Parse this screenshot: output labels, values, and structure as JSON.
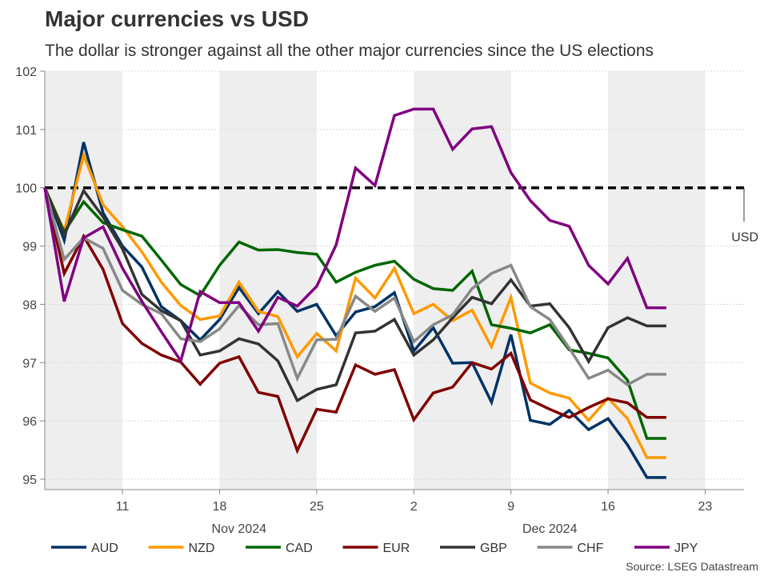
{
  "title": "Major currencies vs USD",
  "subtitle": "The dollar is stronger against all the other major currencies since the US elections",
  "source": "Source: LSEG Datastream",
  "chart_data": {
    "type": "line",
    "title": "Major currencies vs USD",
    "xlabel": "",
    "ylabel": "",
    "ylim": [
      95,
      102
    ],
    "xlim": [
      "2024-11-05",
      "2024-12-25"
    ],
    "x_axis_note": "business days",
    "grid": true,
    "legend_position": "bottom",
    "y_ticks": [
      95,
      96,
      97,
      98,
      99,
      100,
      101,
      102
    ],
    "x_ticks": [
      {
        "date": "2024-11-11",
        "label": "11"
      },
      {
        "date": "2024-11-18",
        "label": "18"
      },
      {
        "date": "2024-11-25",
        "label": "25"
      },
      {
        "date": "2024-12-02",
        "label": "2"
      },
      {
        "date": "2024-12-09",
        "label": "9"
      },
      {
        "date": "2024-12-16",
        "label": "16"
      },
      {
        "date": "2024-12-23",
        "label": "23"
      }
    ],
    "month_labels": [
      {
        "date": "2024-11-19",
        "label": "Nov 2024"
      },
      {
        "date": "2024-12-11",
        "label": "Dec 2024"
      }
    ],
    "shaded_weeks": [
      [
        "2024-11-05",
        "2024-11-11"
      ],
      [
        "2024-11-18",
        "2024-11-25"
      ],
      [
        "2024-12-02",
        "2024-12-09"
      ],
      [
        "2024-12-16",
        "2024-12-23"
      ]
    ],
    "shade_color": "#eeeeee",
    "reference_line": {
      "value": 100,
      "label": "USD",
      "color": "#000000",
      "style": "dashed"
    },
    "x": [
      "2024-11-05",
      "2024-11-06",
      "2024-11-07",
      "2024-11-08",
      "2024-11-11",
      "2024-11-12",
      "2024-11-13",
      "2024-11-14",
      "2024-11-15",
      "2024-11-18",
      "2024-11-19",
      "2024-11-20",
      "2024-11-21",
      "2024-11-22",
      "2024-11-25",
      "2024-11-26",
      "2024-11-27",
      "2024-11-28",
      "2024-11-29",
      "2024-12-02",
      "2024-12-03",
      "2024-12-04",
      "2024-12-05",
      "2024-12-06",
      "2024-12-09",
      "2024-12-10",
      "2024-12-11",
      "2024-12-12",
      "2024-12-13",
      "2024-12-16",
      "2024-12-17",
      "2024-12-18",
      "2024-12-19"
    ],
    "series": [
      {
        "name": "AUD",
        "color": "#003366",
        "values": [
          100,
          99.1,
          100.78,
          99.57,
          99.0,
          98.64,
          97.96,
          97.72,
          97.39,
          97.74,
          98.29,
          97.84,
          98.22,
          97.88,
          98.0,
          97.46,
          97.87,
          97.96,
          98.2,
          97.2,
          97.6,
          96.99,
          97.0,
          96.32,
          97.48,
          96.01,
          95.94,
          96.18,
          95.85,
          96.04,
          95.59,
          95.03,
          95.03
        ]
      },
      {
        "name": "NZD",
        "color": "#ff9900",
        "values": [
          100,
          99.26,
          100.56,
          99.71,
          99.33,
          98.9,
          98.38,
          97.98,
          97.74,
          97.8,
          98.38,
          97.88,
          97.79,
          97.1,
          97.5,
          97.2,
          98.45,
          98.11,
          98.62,
          97.84,
          98.0,
          97.72,
          97.9,
          97.27,
          98.12,
          96.65,
          96.48,
          96.39,
          96.01,
          96.39,
          96.04,
          95.37,
          95.37
        ]
      },
      {
        "name": "CAD",
        "color": "#006600",
        "values": [
          100,
          99.24,
          99.76,
          99.4,
          99.28,
          99.17,
          98.76,
          98.34,
          98.15,
          98.67,
          99.07,
          98.93,
          98.94,
          98.89,
          98.86,
          98.38,
          98.55,
          98.67,
          98.74,
          98.43,
          98.27,
          98.24,
          98.57,
          97.65,
          97.59,
          97.51,
          97.65,
          97.22,
          97.16,
          97.08,
          96.7,
          95.7,
          95.7
        ]
      },
      {
        "name": "EUR",
        "color": "#800000",
        "values": [
          100,
          98.53,
          99.17,
          98.6,
          97.67,
          97.33,
          97.13,
          97.01,
          96.63,
          96.99,
          97.1,
          96.49,
          96.42,
          95.49,
          96.2,
          96.15,
          96.96,
          96.8,
          96.88,
          96.02,
          96.48,
          96.58,
          97.0,
          96.89,
          97.16,
          96.36,
          96.2,
          96.06,
          96.23,
          96.38,
          96.31,
          96.06,
          96.06
        ]
      },
      {
        "name": "GBP",
        "color": "#333333",
        "values": [
          100,
          99.19,
          99.95,
          99.5,
          98.95,
          98.17,
          97.89,
          97.72,
          97.13,
          97.2,
          97.41,
          97.32,
          97.03,
          96.35,
          96.54,
          96.62,
          97.51,
          97.54,
          97.74,
          97.13,
          97.39,
          97.77,
          98.12,
          98.01,
          98.42,
          97.97,
          98.01,
          97.6,
          97.02,
          97.6,
          97.77,
          97.63,
          97.63
        ]
      },
      {
        "name": "CHF",
        "color": "#888888",
        "values": [
          100,
          98.77,
          99.14,
          98.96,
          98.24,
          98.0,
          97.84,
          97.41,
          97.36,
          97.58,
          97.98,
          97.65,
          97.67,
          96.73,
          97.39,
          97.4,
          98.14,
          97.88,
          98.11,
          97.36,
          97.65,
          97.82,
          98.27,
          98.53,
          98.67,
          97.96,
          97.74,
          97.25,
          96.73,
          96.87,
          96.62,
          96.8,
          96.8
        ]
      },
      {
        "name": "JPY",
        "color": "#800080",
        "values": [
          100,
          98.05,
          99.14,
          99.33,
          98.62,
          98.05,
          97.53,
          97.03,
          98.22,
          98.03,
          98.03,
          97.54,
          98.12,
          97.97,
          98.31,
          99.02,
          100.34,
          100.04,
          101.24,
          101.35,
          101.35,
          100.66,
          101.01,
          101.05,
          100.26,
          99.78,
          99.44,
          99.34,
          98.67,
          98.35,
          98.79,
          97.94,
          97.94
        ]
      }
    ]
  }
}
